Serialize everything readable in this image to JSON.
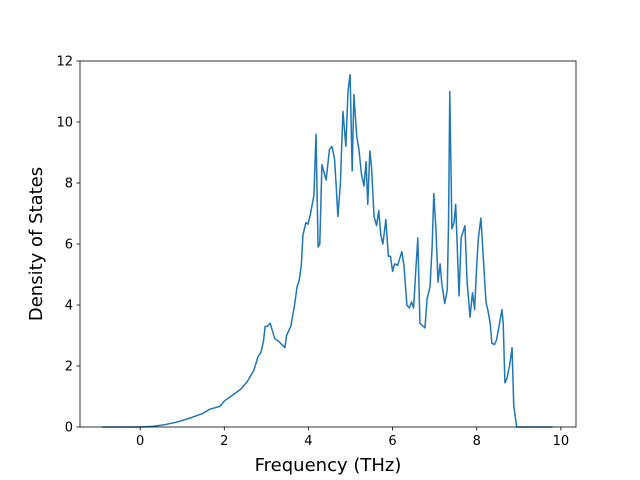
{
  "chart_data": {
    "type": "line",
    "x_label": "Frequency (THz)",
    "y_label": "Density of States",
    "x": [
      -0.9,
      0,
      0.3,
      0.6,
      0.9,
      1.2,
      1.5,
      1.65,
      1.9,
      2.0,
      2.2,
      2.4,
      2.55,
      2.7,
      2.8,
      2.87,
      2.93,
      2.97,
      3.02,
      3.09,
      3.2,
      3.3,
      3.44,
      3.48,
      3.58,
      3.67,
      3.73,
      3.78,
      3.83,
      3.87,
      3.94,
      3.99,
      4.05,
      4.13,
      4.18,
      4.23,
      4.27,
      4.32,
      4.42,
      4.5,
      4.56,
      4.62,
      4.66,
      4.7,
      4.76,
      4.82,
      4.89,
      4.94,
      4.99,
      5.04,
      5.08,
      5.15,
      5.2,
      5.26,
      5.32,
      5.37,
      5.41,
      5.46,
      5.5,
      5.56,
      5.62,
      5.67,
      5.72,
      5.77,
      5.84,
      5.9,
      5.95,
      6.0,
      6.05,
      6.12,
      6.22,
      6.27,
      6.34,
      6.4,
      6.45,
      6.5,
      6.55,
      6.6,
      6.65,
      6.77,
      6.82,
      6.89,
      6.94,
      6.98,
      7.03,
      7.08,
      7.13,
      7.17,
      7.24,
      7.3,
      7.33,
      7.36,
      7.41,
      7.46,
      7.5,
      7.58,
      7.63,
      7.72,
      7.77,
      7.84,
      7.9,
      7.95,
      8.0,
      8.04,
      8.1,
      8.15,
      8.22,
      8.27,
      8.32,
      8.36,
      8.42,
      8.47,
      8.53,
      8.6,
      8.63,
      8.67,
      8.72,
      8.78,
      8.84,
      8.88,
      8.95,
      9.8
    ],
    "series": [
      {
        "color": "#1f77b4",
        "values": [
          0,
          0,
          0.02,
          0.08,
          0.17,
          0.3,
          0.45,
          0.58,
          0.68,
          0.85,
          1.05,
          1.25,
          1.5,
          1.85,
          2.3,
          2.45,
          2.8,
          3.3,
          3.3,
          3.4,
          2.9,
          2.8,
          2.6,
          3.0,
          3.3,
          4.0,
          4.6,
          4.8,
          5.3,
          6.3,
          6.7,
          6.65,
          7.0,
          7.6,
          9.6,
          5.9,
          6.0,
          8.6,
          8.1,
          9.1,
          9.2,
          8.8,
          7.9,
          6.9,
          8.0,
          10.35,
          9.2,
          11.0,
          11.55,
          8.4,
          10.9,
          9.5,
          9.1,
          8.3,
          7.9,
          8.7,
          7.3,
          9.05,
          8.5,
          6.9,
          6.6,
          7.1,
          6.3,
          6.0,
          6.8,
          5.6,
          5.6,
          5.1,
          5.35,
          5.3,
          5.75,
          5.3,
          4.0,
          3.9,
          4.1,
          3.9,
          5.1,
          6.2,
          3.4,
          3.25,
          4.2,
          4.6,
          5.9,
          7.65,
          6.5,
          4.75,
          5.35,
          4.7,
          4.05,
          4.5,
          6.7,
          11.0,
          6.5,
          6.7,
          7.3,
          4.3,
          6.2,
          6.6,
          4.8,
          3.6,
          4.4,
          3.85,
          5.3,
          6.2,
          6.85,
          5.7,
          4.1,
          3.8,
          3.4,
          2.75,
          2.7,
          2.85,
          3.3,
          3.85,
          3.4,
          1.45,
          1.6,
          2.0,
          2.6,
          0.7,
          0,
          0
        ]
      }
    ],
    "xlim": [
      -1.43,
      10.36
    ],
    "ylim": [
      0,
      12
    ],
    "xticks": [
      0,
      2,
      4,
      6,
      8,
      10
    ],
    "yticks": [
      0,
      2,
      4,
      6,
      8,
      10,
      12
    ]
  }
}
